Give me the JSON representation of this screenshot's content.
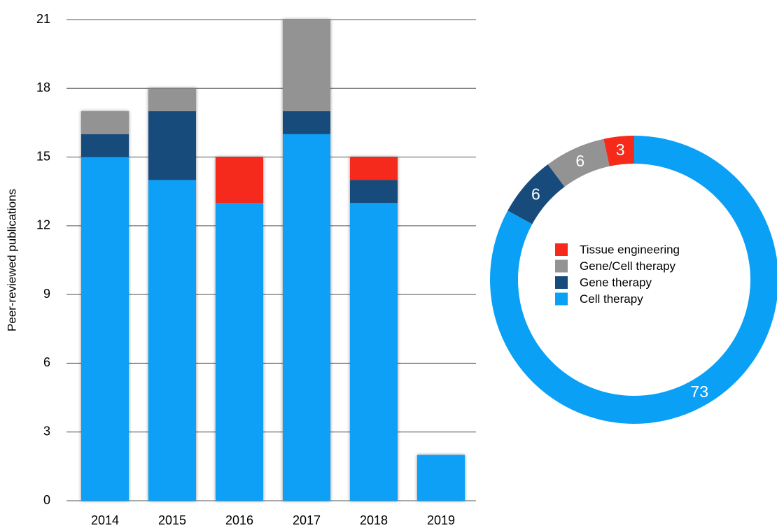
{
  "chart_data": [
    {
      "type": "bar",
      "stacked": true,
      "y_label": "Peer-reviewed publications",
      "categories": [
        "2014",
        "2015",
        "2016",
        "2017",
        "2018",
        "2019"
      ],
      "series": [
        {
          "color": "#0aa0f6",
          "values": [
            15,
            14,
            13,
            16,
            13,
            2
          ]
        },
        {
          "color": "#174b7c",
          "values": [
            1,
            3,
            0,
            1,
            1,
            0
          ]
        },
        {
          "color": "#939393",
          "values": [
            1,
            1,
            0,
            4,
            0,
            0
          ]
        },
        {
          "color": "#f52a1a",
          "values": [
            0,
            0,
            2,
            0,
            1,
            0
          ]
        }
      ],
      "ylim": [
        0,
        21
      ],
      "yticks": [
        0,
        3,
        6,
        9,
        12,
        15,
        18,
        21
      ],
      "grid": true
    },
    {
      "type": "donut",
      "categories": [
        "Tissue engineering",
        "Gene/Cell therapy",
        "Gene therapy",
        "Cell therapy"
      ],
      "values": [
        3,
        6,
        6,
        73
      ],
      "colors": [
        "#f52a1a",
        "#939393",
        "#174b7c",
        "#0aa0f6"
      ]
    }
  ]
}
